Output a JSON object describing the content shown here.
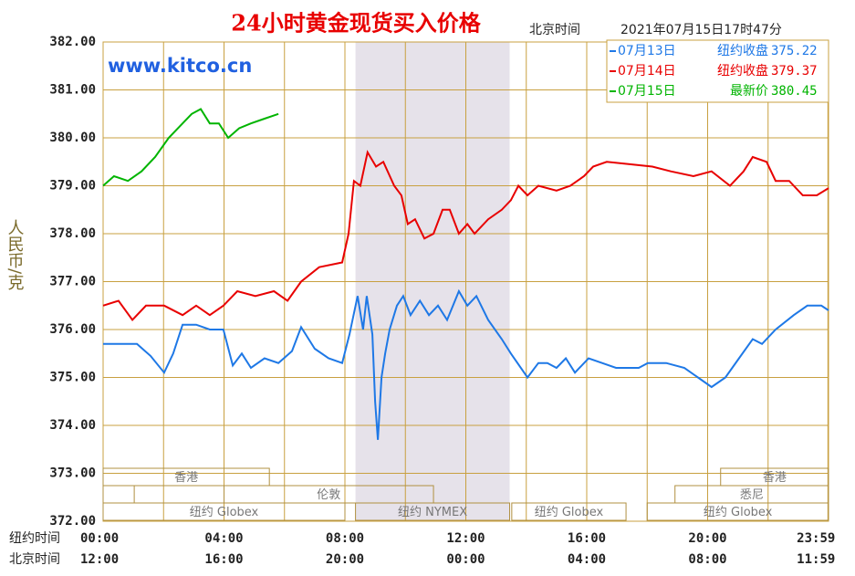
{
  "chart_data": {
    "type": "line",
    "title": "24小时黄金现货买入价格",
    "time_caption": "北京时间",
    "timestamp": "2021年07月15日17时47分",
    "watermark": "www.kitco.cn",
    "y_label": "人民币/克",
    "x_row_labels": [
      "纽约时间",
      "北京时间"
    ],
    "xlim": [
      0,
      24
    ],
    "ylim": [
      372,
      382
    ],
    "yticks": [
      {
        "value": 372,
        "label": "372.00"
      },
      {
        "value": 373,
        "label": "373.00"
      },
      {
        "value": 374,
        "label": "374.00"
      },
      {
        "value": 375,
        "label": "375.00"
      },
      {
        "value": 376,
        "label": "376.00"
      },
      {
        "value": 377,
        "label": "377.00"
      },
      {
        "value": 378,
        "label": "378.00"
      },
      {
        "value": 379,
        "label": "379.00"
      },
      {
        "value": 380,
        "label": "380.00"
      },
      {
        "value": 381,
        "label": "381.00"
      },
      {
        "value": 382,
        "label": "382.00"
      }
    ],
    "xticks": [
      {
        "value": 0,
        "label": "00:00"
      },
      {
        "value": 4,
        "label": "04:00"
      },
      {
        "value": 8,
        "label": "08:00"
      },
      {
        "value": 12,
        "label": "12:00"
      },
      {
        "value": 16,
        "label": "16:00"
      },
      {
        "value": 20,
        "label": "20:00"
      },
      {
        "value": 23.98,
        "label": "23:59"
      }
    ],
    "xtick_labels_beijing": [
      "12:00",
      "16:00",
      "20:00",
      "00:00",
      "04:00",
      "08:00",
      "11:59"
    ],
    "grid_x": [
      2,
      6,
      10,
      14,
      18,
      22
    ],
    "highlight": [
      8.35,
      13.45
    ],
    "sessions": [
      [
        {
          "label": "香港",
          "start": 0,
          "end": 5.5
        },
        {
          "label": "香港",
          "start": 20.43,
          "end": 24
        }
      ],
      [
        {
          "label": null,
          "start": 0,
          "end": 1.03
        },
        {
          "label": "伦敦",
          "start": 4.0,
          "end": 10.93
        },
        {
          "label": "悉尼",
          "start": 18.92,
          "end": 24
        }
      ],
      [
        {
          "label": "纽约 Globex",
          "start": 0,
          "end": 8.0
        },
        {
          "label": "纽约 NYMEX",
          "start": 8.35,
          "end": 13.45
        },
        {
          "label": "纽约 Globex",
          "start": 13.52,
          "end": 17.3
        },
        {
          "label": "纽约 Globex",
          "start": 18.0,
          "end": 24
        }
      ]
    ],
    "series": [
      {
        "name": "07月13日",
        "legend_text": "纽约收盘",
        "close": "375.22",
        "color": "#1e78e6",
        "x": [
          0,
          0.51,
          1.12,
          1.57,
          2.02,
          2.32,
          2.63,
          3.08,
          3.53,
          3.98,
          4.29,
          4.59,
          4.89,
          5.34,
          5.8,
          6.25,
          6.55,
          7.0,
          7.46,
          7.91,
          8.15,
          8.42,
          8.6,
          8.72,
          8.91,
          9.0,
          9.09,
          9.21,
          9.33,
          9.48,
          9.72,
          9.93,
          10.17,
          10.48,
          10.78,
          11.08,
          11.38,
          11.77,
          12.05,
          12.35,
          12.74,
          13.19,
          13.49,
          14.04,
          14.4,
          14.7,
          15.0,
          15.31,
          15.61,
          16.06,
          16.51,
          16.97,
          17.72,
          18.02,
          18.63,
          19.23,
          19.68,
          20.13,
          20.59,
          21.04,
          21.49,
          21.8,
          22.25,
          22.85,
          23.3,
          23.76,
          24.0
        ],
        "values": [
          375.7,
          375.7,
          375.7,
          375.45,
          375.1,
          375.5,
          376.1,
          376.1,
          376.0,
          376.0,
          375.25,
          375.5,
          375.2,
          375.4,
          375.3,
          375.55,
          376.05,
          375.6,
          375.4,
          375.3,
          375.9,
          376.7,
          376.0,
          376.7,
          375.9,
          374.5,
          373.7,
          375.0,
          375.5,
          376.0,
          376.5,
          376.7,
          376.3,
          376.6,
          376.3,
          376.5,
          376.2,
          376.8,
          376.5,
          376.7,
          376.2,
          375.8,
          375.5,
          375.0,
          375.3,
          375.3,
          375.2,
          375.4,
          375.1,
          375.4,
          375.3,
          375.2,
          375.2,
          375.3,
          375.3,
          375.2,
          375.0,
          374.8,
          375.0,
          375.4,
          375.8,
          375.7,
          376.0,
          376.3,
          376.5,
          376.5,
          376.4
        ]
      },
      {
        "name": "07月14日",
        "legend_text": "纽约收盘",
        "close": "379.37",
        "color": "#e80000",
        "x": [
          0,
          0.51,
          0.97,
          1.42,
          2.02,
          2.63,
          3.08,
          3.53,
          3.98,
          4.44,
          5.04,
          5.65,
          6.1,
          6.55,
          7.15,
          7.91,
          8.12,
          8.3,
          8.51,
          8.75,
          9.03,
          9.27,
          9.63,
          9.87,
          10.08,
          10.32,
          10.63,
          10.93,
          11.23,
          11.47,
          11.77,
          12.05,
          12.29,
          12.74,
          13.19,
          13.49,
          13.74,
          14.04,
          14.4,
          15.0,
          15.46,
          15.91,
          16.21,
          16.66,
          17.42,
          18.17,
          18.78,
          19.53,
          20.13,
          20.74,
          21.19,
          21.49,
          21.95,
          22.25,
          22.7,
          23.15,
          23.61,
          24.0
        ],
        "values": [
          376.5,
          376.6,
          376.2,
          376.5,
          376.5,
          376.3,
          376.5,
          376.3,
          376.5,
          376.8,
          376.7,
          376.8,
          376.6,
          377.0,
          377.3,
          377.4,
          378.0,
          379.1,
          379.0,
          379.7,
          379.4,
          379.5,
          379.0,
          378.8,
          378.2,
          378.3,
          377.9,
          378.0,
          378.5,
          378.5,
          378.0,
          378.2,
          378.0,
          378.3,
          378.5,
          378.7,
          379.0,
          378.8,
          379.0,
          378.9,
          379.0,
          379.2,
          379.4,
          379.5,
          379.45,
          379.4,
          379.3,
          379.2,
          379.3,
          379.0,
          379.3,
          379.6,
          379.5,
          379.1,
          379.1,
          378.8,
          378.8,
          378.95
        ]
      },
      {
        "name": "07月15日",
        "legend_text": "最新价",
        "close": "380.45",
        "color": "#00b400",
        "x": [
          0,
          0.36,
          0.82,
          1.27,
          1.72,
          2.17,
          2.63,
          2.93,
          3.23,
          3.53,
          3.83,
          4.14,
          4.5,
          4.89,
          5.34,
          5.8
        ],
        "values": [
          379.0,
          379.2,
          379.1,
          379.3,
          379.6,
          380.0,
          380.3,
          380.5,
          380.6,
          380.3,
          380.3,
          380.0,
          380.2,
          380.3,
          380.4,
          380.5
        ]
      }
    ]
  }
}
